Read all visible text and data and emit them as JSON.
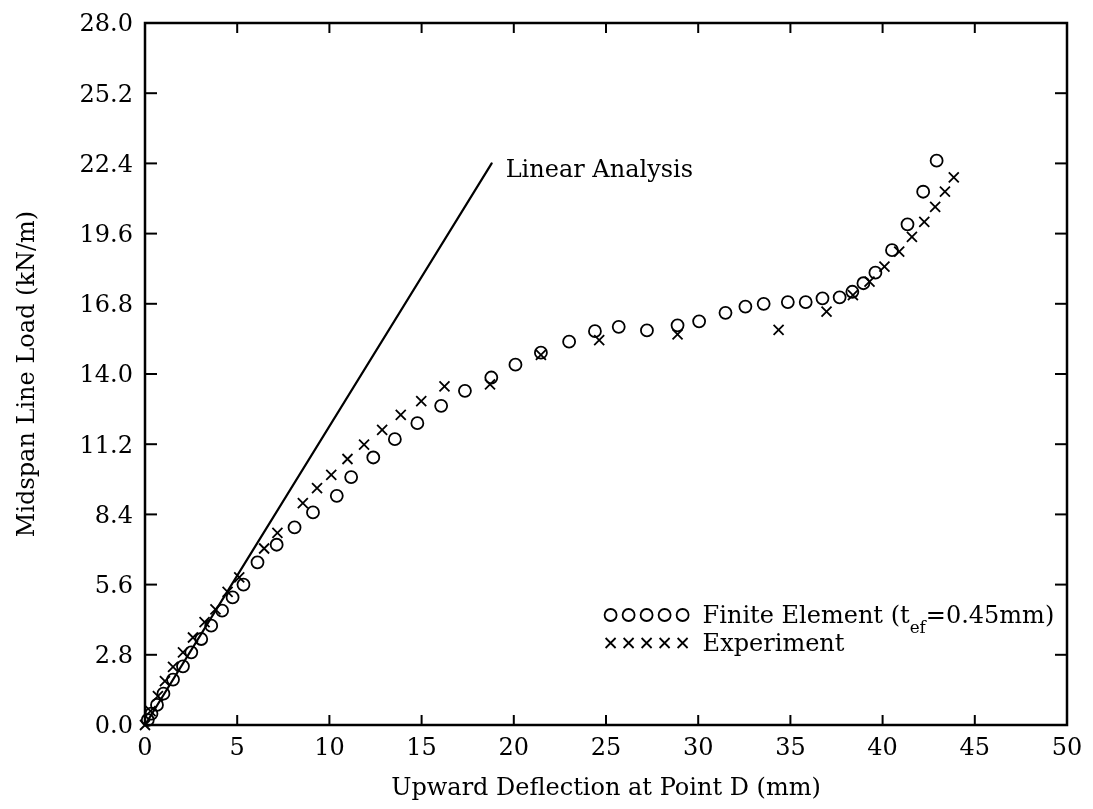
{
  "chart_data": {
    "type": "scatter",
    "xlabel": "Upward Deflection at Point D (mm)",
    "ylabel": "Midspan Line Load (kN/m)",
    "xlim": [
      0,
      50
    ],
    "xticks": [
      0,
      5,
      10,
      15,
      20,
      25,
      30,
      35,
      40,
      45,
      50
    ],
    "ylim": [
      0,
      28
    ],
    "yticks": [
      {
        "value": 0,
        "label": "0.0"
      },
      2.8,
      5.6,
      8.4,
      11.2,
      {
        "value": 14,
        "label": "14.0"
      },
      16.8,
      19.6,
      22.4,
      25.2,
      {
        "value": 28,
        "label": "28.0"
      }
    ],
    "grid": false,
    "legend": "bottom right",
    "series": [
      {
        "name": "Linear Analysis",
        "type": "line",
        "color": "#000000",
        "marker": "none",
        "line_style": "solid",
        "x": [
          0,
          18.8
        ],
        "values": [
          0,
          22.4
        ]
      },
      {
        "name": "Finite Element (t$_{ef}$=0.45mm)",
        "color": "#000000",
        "marker": "circle",
        "x": [
          0.15,
          0.35,
          0.65,
          1.0,
          1.52,
          2.06,
          2.51,
          3.05,
          3.59,
          4.18,
          4.75,
          5.34,
          6.1,
          7.14,
          8.11,
          9.11,
          10.4,
          11.18,
          12.38,
          13.55,
          14.77,
          16.06,
          17.35,
          18.78,
          20.09,
          21.47,
          23.0,
          24.4,
          25.69,
          27.22,
          28.88,
          30.05,
          31.48,
          32.56,
          33.55,
          34.86,
          35.83,
          36.74,
          37.67,
          38.36,
          38.96,
          39.61,
          40.51,
          41.35,
          42.2,
          42.93
        ],
        "values": [
          0.2,
          0.45,
          0.8,
          1.25,
          1.81,
          2.34,
          2.9,
          3.43,
          3.96,
          4.56,
          5.09,
          5.6,
          6.49,
          7.19,
          7.88,
          8.48,
          9.14,
          9.89,
          10.67,
          11.4,
          12.04,
          12.73,
          13.33,
          13.86,
          14.37,
          14.85,
          15.29,
          15.71,
          15.88,
          15.74,
          15.94,
          16.1,
          16.44,
          16.69,
          16.8,
          16.87,
          16.87,
          17.02,
          17.06,
          17.28,
          17.62,
          18.04,
          18.94,
          19.97,
          21.27,
          22.51
        ]
      },
      {
        "name": "Experiment",
        "color": "#000000",
        "marker": "cross",
        "x": [
          0,
          0.3,
          0.7,
          1.08,
          1.52,
          2.06,
          2.6,
          3.23,
          3.82,
          4.48,
          5.11,
          6.46,
          7.18,
          8.56,
          9.33,
          10.1,
          10.98,
          11.88,
          12.86,
          13.87,
          14.98,
          16.24,
          18.71,
          21.47,
          24.63,
          28.88,
          34.36,
          36.96,
          38.39,
          39.29,
          40.1,
          40.9,
          41.59,
          42.26,
          42.85,
          43.38,
          43.86
        ],
        "values": [
          0,
          0.55,
          1.15,
          1.75,
          2.32,
          2.9,
          3.49,
          4.1,
          4.61,
          5.31,
          5.89,
          7.04,
          7.66,
          8.85,
          9.45,
          9.98,
          10.61,
          11.18,
          11.77,
          12.37,
          12.92,
          13.51,
          13.59,
          14.76,
          15.35,
          15.58,
          15.76,
          16.49,
          17.15,
          17.68,
          18.28,
          18.88,
          19.47,
          20.07,
          20.67,
          21.27,
          21.84
        ]
      }
    ]
  }
}
